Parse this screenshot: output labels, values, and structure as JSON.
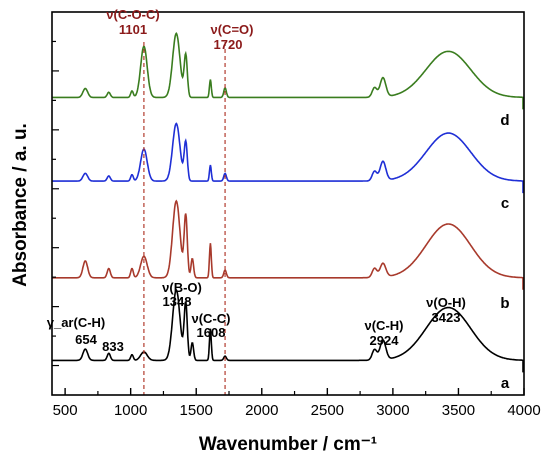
{
  "chart_data": {
    "type": "line",
    "xlabel": "Wavenumber / cm⁻¹",
    "ylabel": "Absorbance / a. u.",
    "xlim": [
      400,
      4000
    ],
    "x_ticks": [
      "500",
      "1000",
      "1500",
      "2000",
      "2500",
      "3000",
      "3500",
      "4000"
    ],
    "y_ticks_labeled": false,
    "grid": false,
    "series": [
      {
        "name": "a",
        "color": "#000000",
        "baseline": 0.08,
        "scale": 0.22,
        "peaks": [
          [
            654,
            0.16,
            18
          ],
          [
            833,
            0.1,
            12
          ],
          [
            1010,
            0.08,
            10
          ],
          [
            1101,
            0.12,
            25
          ],
          [
            1348,
            1.0,
            28
          ],
          [
            1420,
            0.8,
            12
          ],
          [
            1470,
            0.25,
            10
          ],
          [
            1608,
            0.45,
            7
          ],
          [
            1720,
            0.06,
            10
          ],
          [
            2860,
            0.15,
            18
          ],
          [
            2924,
            0.28,
            22
          ],
          [
            3423,
            0.75,
            170
          ]
        ]
      },
      {
        "name": "b",
        "color": "#a83a2c",
        "baseline": 0.12,
        "scale": 0.24,
        "peaks": [
          [
            654,
            0.22,
            18
          ],
          [
            833,
            0.12,
            12
          ],
          [
            1010,
            0.12,
            10
          ],
          [
            1101,
            0.28,
            25
          ],
          [
            1348,
            1.0,
            28
          ],
          [
            1420,
            0.8,
            12
          ],
          [
            1470,
            0.25,
            10
          ],
          [
            1608,
            0.45,
            7
          ],
          [
            1720,
            0.1,
            10
          ],
          [
            2860,
            0.12,
            18
          ],
          [
            2924,
            0.18,
            22
          ],
          [
            3423,
            0.7,
            170
          ]
        ]
      },
      {
        "name": "c",
        "color": "#1f2fd6",
        "baseline": 0.03,
        "scale": 0.2,
        "peaks": [
          [
            654,
            0.12,
            18
          ],
          [
            833,
            0.08,
            12
          ],
          [
            1010,
            0.1,
            10
          ],
          [
            1101,
            0.5,
            25
          ],
          [
            1348,
            0.9,
            28
          ],
          [
            1420,
            0.6,
            12
          ],
          [
            1608,
            0.25,
            7
          ],
          [
            1720,
            0.12,
            10
          ],
          [
            2860,
            0.15,
            18
          ],
          [
            2924,
            0.3,
            22
          ],
          [
            3423,
            0.75,
            170
          ]
        ]
      },
      {
        "name": "d",
        "color": "#3a7d1f",
        "baseline": 0.04,
        "scale": 0.2,
        "peaks": [
          [
            654,
            0.14,
            18
          ],
          [
            833,
            0.08,
            12
          ],
          [
            1010,
            0.1,
            10
          ],
          [
            1101,
            0.8,
            25
          ],
          [
            1348,
            1.0,
            28
          ],
          [
            1420,
            0.65,
            12
          ],
          [
            1608,
            0.28,
            7
          ],
          [
            1720,
            0.15,
            10
          ],
          [
            2860,
            0.15,
            18
          ],
          [
            2924,
            0.3,
            22
          ],
          [
            3423,
            0.72,
            170
          ]
        ]
      }
    ],
    "reference_lines": [
      1101,
      1720
    ],
    "annotations": {
      "coc_label": "ν(C-O-C)",
      "coc_value": "1101",
      "co_label": "ν(C=O)",
      "co_value": "1720",
      "gamma_label": "γ_ar(C-H)",
      "gamma_value1": "654",
      "gamma_value2": "833",
      "bo_label": "ν(B-O)",
      "bo_value": "1348",
      "cc_label": "ν(C-C)",
      "cc_value": "1608",
      "ch_label": "ν(C-H)",
      "ch_value": "2924",
      "oh_label": "ν(O-H)",
      "oh_value": "3423"
    }
  }
}
